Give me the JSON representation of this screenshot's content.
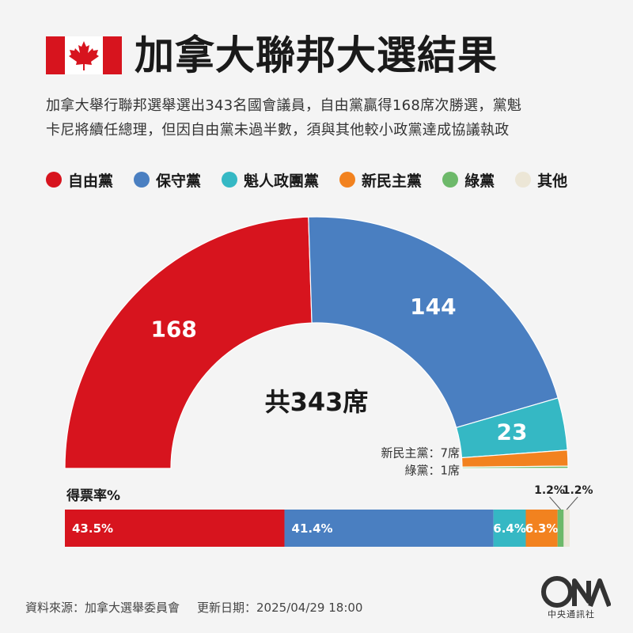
{
  "title": "加拿大聯邦大選結果",
  "intro_lines": [
    "加拿大舉行聯邦選舉選出343名國會議員，自由黨贏得168席次勝選，黨魁",
    "卡尼將續任總理，但因自由黨未過半數，須與其他較小政黨達成協議執政"
  ],
  "legend": [
    {
      "label": "自由黨",
      "color": "#d7141e"
    },
    {
      "label": "保守黨",
      "color": "#4a7fc1"
    },
    {
      "label": "魁人政團黨",
      "color": "#35b8c4"
    },
    {
      "label": "新民主黨",
      "color": "#f2821f"
    },
    {
      "label": "綠黨",
      "color": "#6db96a"
    },
    {
      "label": "其他",
      "color": "#ece6d6"
    }
  ],
  "chart_data": [
    {
      "type": "pie",
      "variant": "half-donut",
      "total_label": "共343席",
      "total": 343,
      "categories": [
        "自由黨",
        "保守黨",
        "魁人政團黨",
        "新民主黨",
        "綠黨"
      ],
      "values": [
        168,
        144,
        23,
        7,
        1
      ],
      "colors": [
        "#d7141e",
        "#4a7fc1",
        "#35b8c4",
        "#f2821f",
        "#6db96a"
      ],
      "data_labels": [
        "168",
        "144",
        "23",
        "",
        ""
      ],
      "annotations": [
        "新民主黨：7席",
        "綠黨：1席"
      ]
    },
    {
      "type": "bar",
      "variant": "stacked-horizontal",
      "title": "得票率%",
      "categories": [
        "自由黨",
        "保守黨",
        "魁人政團黨",
        "新民主黨",
        "綠黨",
        "其他"
      ],
      "values": [
        43.5,
        41.4,
        6.4,
        6.3,
        1.2,
        1.2
      ],
      "colors": [
        "#d7141e",
        "#4a7fc1",
        "#35b8c4",
        "#f2821f",
        "#6db96a",
        "#ece6d6"
      ],
      "inside_labels": [
        "43.5%",
        "41.4%",
        "6.4%",
        "6.3%",
        "",
        ""
      ],
      "outside_labels": [
        "",
        "",
        "",
        "",
        "1.2%",
        "1.2%"
      ]
    }
  ],
  "footer": {
    "source": "資料來源：加拿大選舉委員會",
    "date": "更新日期：2025/04/29 18:00"
  },
  "logo": {
    "text": "中央通訊社",
    "icon": "cna-logo-icon"
  }
}
